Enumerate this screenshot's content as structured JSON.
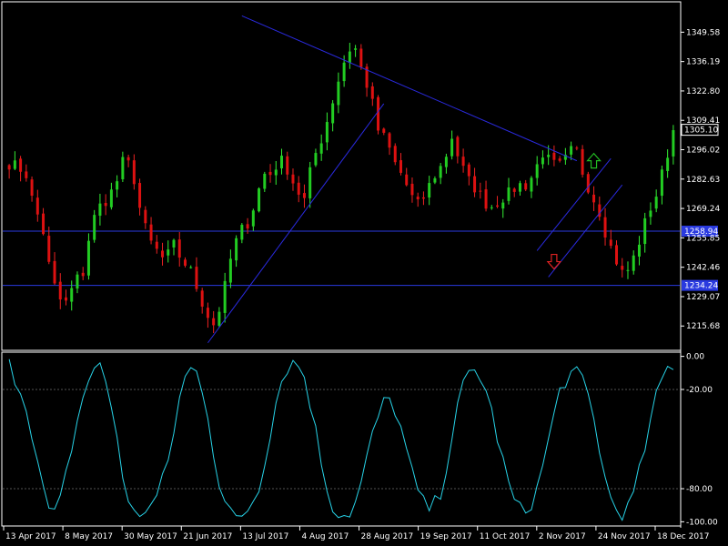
{
  "chart_data": [
    {
      "type": "candlestick",
      "title": "",
      "y_axis": {
        "ylim": [
          1205.0,
          1363.0
        ],
        "ticks": [
          "1349.58",
          "1336.19",
          "1322.80",
          "1309.41",
          "1296.02",
          "1282.63",
          "1269.24",
          "1255.85",
          "1242.46",
          "1229.07",
          "1215.68"
        ]
      },
      "x_axis": {
        "ticks": [
          "13 Apr 2017",
          "8 May 2017",
          "30 May 2017",
          "21 Jun 2017",
          "13 Jul 2017",
          "4 Aug 2017",
          "28 Aug 2017",
          "19 Sep 2017",
          "11 Oct 2017",
          "2 Nov 2017",
          "24 Nov 2017",
          "18 Dec 2017"
        ]
      },
      "current_price": "1305.10",
      "levels": [
        {
          "price": 1258.9,
          "label": "1258.94",
          "color": "#2a3adf"
        },
        {
          "price": 1234.2,
          "label": "1234.24",
          "color": "#2a3adf"
        }
      ],
      "key_closes": [
        1290,
        1288,
        1286,
        1270,
        1262,
        1240,
        1228,
        1226,
        1236,
        1240,
        1262,
        1270,
        1274,
        1280,
        1292,
        1287,
        1268,
        1255,
        1250,
        1245,
        1253,
        1246,
        1242,
        1232,
        1222,
        1216,
        1228,
        1246,
        1258,
        1262,
        1272,
        1285,
        1285,
        1292,
        1287,
        1278,
        1273,
        1291,
        1300,
        1312,
        1326,
        1338,
        1345,
        1332,
        1322,
        1305,
        1300,
        1290,
        1284,
        1275,
        1270,
        1278,
        1285,
        1290,
        1302,
        1290,
        1282,
        1278,
        1272,
        1270,
        1274,
        1276,
        1280,
        1280,
        1285,
        1295,
        1290,
        1288,
        1292,
        1298,
        1285,
        1276,
        1268,
        1255,
        1246,
        1238,
        1245,
        1256,
        1268,
        1276,
        1290,
        1305
      ],
      "trend_lines": [
        {
          "from_bar": 41,
          "from_price": 1357.0,
          "to_bar": 100,
          "to_price": 1291.0,
          "color": "#2a2adf"
        },
        {
          "from_bar": 35,
          "from_price": 1208.0,
          "to_bar": 66,
          "to_price": 1317.0,
          "color": "#2a2adf"
        },
        {
          "from_bar": 93,
          "from_price": 1250.0,
          "to_bar": 106,
          "to_price": 1292.0,
          "color": "#2a2adf"
        },
        {
          "from_bar": 95,
          "from_price": 1238.0,
          "to_bar": 108,
          "to_price": 1280.0,
          "color": "#2a2adf"
        }
      ],
      "arrows": [
        {
          "direction": "up",
          "bar": 103,
          "price": 1291.0,
          "color": "#22bb22"
        },
        {
          "direction": "down",
          "bar": 96,
          "price": 1245.0,
          "color": "#dd2222"
        }
      ],
      "colors": {
        "bull": "#22cc22",
        "bear": "#dd1111",
        "bull_wick": "#33ee33",
        "bear_wick": "#ee2222"
      }
    },
    {
      "type": "line",
      "title": "",
      "y_axis": {
        "ylim": [
          -102.0,
          2.0
        ],
        "ticks": [
          "0.00",
          "-20.00",
          "-80.00",
          "-100.00"
        ],
        "levels": [
          -20,
          -80
        ]
      },
      "series": [
        {
          "color": "#27d3e8",
          "values": [
            -5,
            -15,
            -25,
            -45,
            -70,
            -92,
            -96,
            -85,
            -60,
            -40,
            -20,
            -8,
            -6,
            -18,
            -40,
            -70,
            -95,
            -96,
            -92,
            -90,
            -80,
            -65,
            -40,
            -15,
            -8,
            -10,
            -25,
            -55,
            -82,
            -94,
            -98,
            -95,
            -90,
            -80,
            -60,
            -35,
            -15,
            -5,
            -3,
            -10,
            -30,
            -55,
            -78,
            -92,
            -96,
            -95,
            -88,
            -70,
            -50,
            -35,
            -25,
            -30,
            -45,
            -65,
            -80,
            -90,
            -92,
            -85,
            -65,
            -40,
            -20,
            -10,
            -8,
            -18,
            -35,
            -55,
            -75,
            -88,
            -95,
            -90,
            -80,
            -60,
            -40,
            -20,
            -12,
            -10,
            -15,
            -28,
            -50,
            -75,
            -90,
            -95,
            -92,
            -80,
            -60,
            -40,
            -20,
            -8,
            -5
          ]
        }
      ]
    }
  ]
}
